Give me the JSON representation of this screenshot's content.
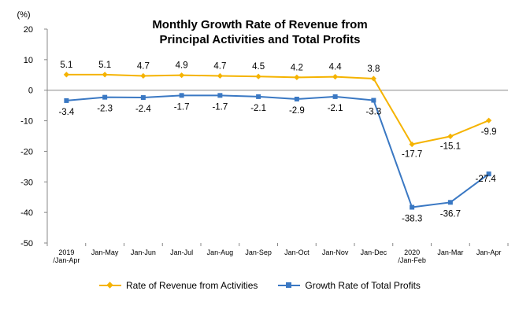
{
  "chart_data": {
    "type": "line",
    "title_lines": [
      "Monthly Growth Rate of Revenue from",
      "Principal Activities  and Total Profits"
    ],
    "unit_label": "(%)",
    "categories": [
      [
        "2019",
        "/Jan-Apr"
      ],
      [
        "Jan-May"
      ],
      [
        "Jan-Jun"
      ],
      [
        "Jan-Jul"
      ],
      [
        "Jan-Aug"
      ],
      [
        "Jan-Sep"
      ],
      [
        "Jan-Oct"
      ],
      [
        "Jan-Nov"
      ],
      [
        "Jan-Dec"
      ],
      [
        "2020",
        "/Jan-Feb"
      ],
      [
        "Jan-Mar"
      ],
      [
        "Jan-Apr"
      ]
    ],
    "ylim": [
      -50,
      20
    ],
    "yticks": [
      20,
      10,
      0,
      -10,
      -20,
      -30,
      -40,
      -50
    ],
    "grid": false,
    "legend_position": "bottom",
    "series": [
      {
        "name": "Rate of Revenue from Activities",
        "color": "#F5B300",
        "marker": "diamond",
        "values": [
          5.1,
          5.1,
          4.7,
          4.9,
          4.7,
          4.5,
          4.2,
          4.4,
          3.8,
          -17.7,
          -15.1,
          -9.9
        ],
        "labels": [
          "5.1",
          "5.1",
          "4.7",
          "4.9",
          "4.7",
          "4.5",
          "4.2",
          "4.4",
          "3.8",
          "-17.7",
          "-15.1",
          "-9.9"
        ]
      },
      {
        "name": "Growth Rate of Total Profits",
        "color": "#3A78C3",
        "marker": "square",
        "values": [
          -3.4,
          -2.3,
          -2.4,
          -1.7,
          -1.7,
          -2.1,
          -2.9,
          -2.1,
          -3.3,
          -38.3,
          -36.7,
          -27.4
        ],
        "labels": [
          "-3.4",
          "-2.3",
          "-2.4",
          "-1.7",
          "-1.7",
          "-2.1",
          "-2.9",
          "-2.1",
          "-3.3",
          "-38.3",
          "-36.7",
          "-27.4"
        ]
      }
    ]
  }
}
